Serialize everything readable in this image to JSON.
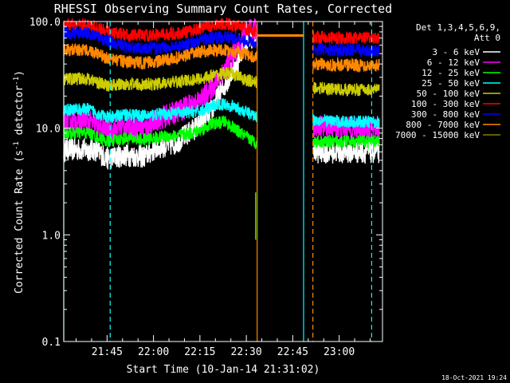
{
  "chart_data": {
    "type": "line",
    "title": "RHESSI Observing Summary Count Rates, Corrected",
    "xlabel": "Start Time (10-Jan-14 21:31:02)",
    "ylabel_prefix": "Corrected Count Rate (s",
    "ylabel_sup1": "-1",
    "ylabel_mid": " detector",
    "ylabel_sup2": "-1",
    "ylabel_suffix": ")",
    "y_scale": "log",
    "ylim": [
      0.1,
      100
    ],
    "xlim_minutes": [
      0,
      103
    ],
    "x_ticks": [
      {
        "label": "21:45",
        "minutes": 14
      },
      {
        "label": "22:00",
        "minutes": 29
      },
      {
        "label": "22:15",
        "minutes": 44
      },
      {
        "label": "22:30",
        "minutes": 59
      },
      {
        "label": "22:45",
        "minutes": 74
      },
      {
        "label": "23:00",
        "minutes": 89
      }
    ],
    "y_ticks": [
      {
        "label": "100.0",
        "value": 100
      },
      {
        "label": "10.0",
        "value": 10
      },
      {
        "label": "1.0",
        "value": 1
      },
      {
        "label": "0.1",
        "value": 0.1
      }
    ],
    "legend": {
      "placement": "right",
      "header1": "Det 1,3,4,5,6,9,",
      "header2": "Att 0"
    },
    "footer_timestamp": "18-Oct-2021 19:24",
    "series": [
      {
        "name": "3 - 6 keV",
        "color": "#ffffff",
        "x": [
          0,
          10,
          14,
          20,
          26,
          30,
          36,
          40,
          44,
          48,
          52,
          56,
          59,
          62.5,
          80.5,
          90,
          102
        ],
        "y": [
          6.3,
          6.3,
          5.2,
          5.6,
          5.4,
          6.5,
          7.2,
          8.8,
          10.8,
          15,
          25,
          40,
          68,
          75,
          6,
          6,
          6
        ]
      },
      {
        "name": "6 - 12 keV",
        "color": "#ff00ff",
        "x": [
          0,
          8,
          14,
          20,
          26,
          30,
          36,
          40,
          44,
          48,
          52,
          56,
          59,
          62.5,
          80.5,
          90,
          102
        ],
        "y": [
          11.5,
          11.5,
          9.5,
          10.5,
          10,
          12,
          14,
          16,
          18,
          24,
          35,
          55,
          80,
          85,
          10.5,
          10,
          10
        ]
      },
      {
        "name": "12 - 25 keV",
        "color": "#00ff00",
        "x": [
          0,
          8,
          14,
          20,
          26,
          30,
          36,
          40,
          44,
          48,
          52,
          56,
          59,
          62.5,
          80.5,
          90,
          102
        ],
        "y": [
          9,
          9,
          7.5,
          8,
          7.8,
          8.2,
          8.5,
          8.8,
          9.5,
          11,
          11.5,
          9.5,
          8.2,
          7.2,
          7.5,
          7.5,
          7.5
        ]
      },
      {
        "name": "25 - 50 keV",
        "color": "#00ffff",
        "x": [
          0,
          8,
          14,
          20,
          26,
          30,
          36,
          40,
          44,
          48,
          52,
          56,
          59,
          62.5,
          80.5,
          90,
          102
        ],
        "y": [
          15,
          15,
          12.5,
          13.5,
          13,
          13.5,
          13.8,
          14,
          14.5,
          16,
          17,
          15.5,
          14,
          13,
          12,
          11.5,
          11.5
        ]
      },
      {
        "name": "50 - 100 keV",
        "color": "#cccc00",
        "x": [
          0,
          8,
          14,
          20,
          26,
          30,
          36,
          40,
          44,
          48,
          52,
          56,
          59,
          62.5,
          80.5,
          90,
          102
        ],
        "y": [
          29,
          29,
          25,
          26,
          25.5,
          26,
          27,
          28,
          29,
          31,
          33,
          31,
          28,
          27,
          24,
          23,
          23
        ]
      },
      {
        "name": "100 - 300 keV",
        "color": "#ff0000",
        "x": [
          0,
          8,
          14,
          20,
          26,
          30,
          36,
          40,
          44,
          48,
          52,
          56,
          59,
          62.5,
          80.5,
          90,
          102
        ],
        "y": [
          92,
          92,
          80,
          75,
          74,
          75,
          77,
          80,
          86,
          92,
          96,
          90,
          85,
          80,
          72,
          70,
          70
        ]
      },
      {
        "name": "300 - 800 keV",
        "color": "#0000ff",
        "x": [
          0,
          8,
          14,
          20,
          26,
          30,
          36,
          40,
          44,
          48,
          52,
          56,
          59,
          62.5,
          80.5,
          90,
          102
        ],
        "y": [
          78,
          78,
          66,
          58,
          56,
          56,
          58,
          62,
          66,
          70,
          72,
          70,
          66,
          62,
          55,
          54,
          54
        ]
      },
      {
        "name": "800 - 7000 keV",
        "color": "#ff8800",
        "x": [
          0,
          8,
          14,
          20,
          26,
          30,
          36,
          40,
          44,
          48,
          52,
          56,
          59,
          62.5,
          80.5,
          90,
          102
        ],
        "y": [
          54,
          54,
          45,
          42,
          41,
          42,
          45,
          48,
          52,
          54,
          54,
          52,
          49,
          46,
          40,
          39,
          39
        ]
      },
      {
        "name": "7000 - 15000 keV",
        "color": "#808000",
        "x": [],
        "y": []
      }
    ]
  }
}
